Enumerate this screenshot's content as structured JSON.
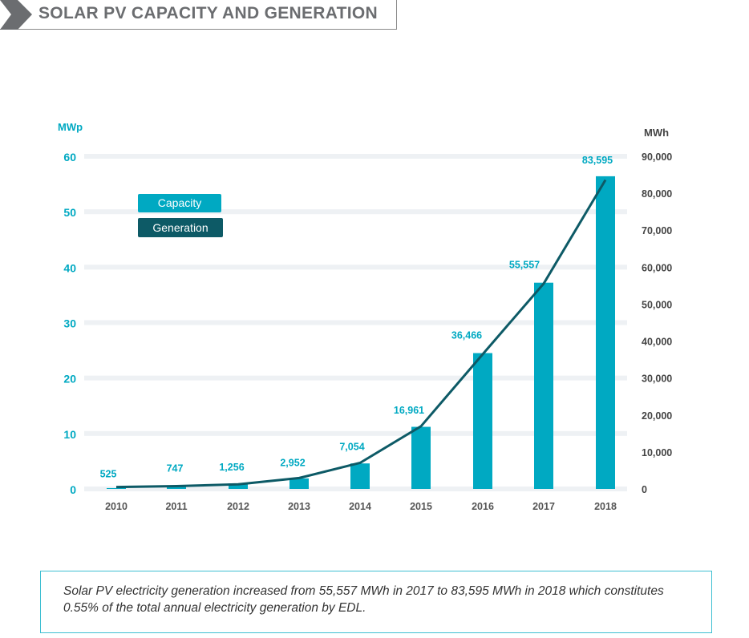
{
  "header": {
    "title": "SOLAR PV CAPACITY AND GENERATION"
  },
  "caption": "Solar PV electricity generation increased from 55,557 MWh in 2017 to 83,595 MWh in 2018 which constitutes 0.55% of the total annual electricity generation by EDL.",
  "colors": {
    "capacity": "#00a9c2",
    "generation": "#0d5a66",
    "axis_text": "#00a9c2",
    "grid": "#eef1f4"
  },
  "chart_data": {
    "type": "bar+line",
    "categories": [
      "2010",
      "2011",
      "2012",
      "2013",
      "2014",
      "2015",
      "2016",
      "2017",
      "2018"
    ],
    "y_left": {
      "label": "MWp",
      "ylim": [
        0,
        60
      ],
      "ticks": [
        "0",
        "10",
        "20",
        "30",
        "40",
        "50",
        "60"
      ]
    },
    "y_right": {
      "label": "MWh",
      "ylim": [
        0,
        90000
      ],
      "ticks": [
        "0",
        "10,000",
        "20,000",
        "30,000",
        "40,000",
        "50,000",
        "60,000",
        "70,000",
        "80,000",
        "90,000"
      ]
    },
    "grid": true,
    "legend": {
      "position": "top-left",
      "entries": [
        "Capacity",
        "Generation"
      ]
    },
    "series": [
      {
        "name": "Capacity",
        "type": "bar",
        "axis": "left",
        "values": [
          0.15,
          0.4,
          1.0,
          1.9,
          4.6,
          11.2,
          24.5,
          37.2,
          56.4
        ]
      },
      {
        "name": "Generation",
        "type": "line",
        "axis": "right",
        "values": [
          525,
          747,
          1256,
          2952,
          7054,
          16961,
          36466,
          55557,
          83595
        ],
        "labels": [
          "525",
          "747",
          "1,256",
          "2,952",
          "7,054",
          "16,961",
          "36,466",
          "55,557",
          "83,595"
        ]
      }
    ]
  }
}
